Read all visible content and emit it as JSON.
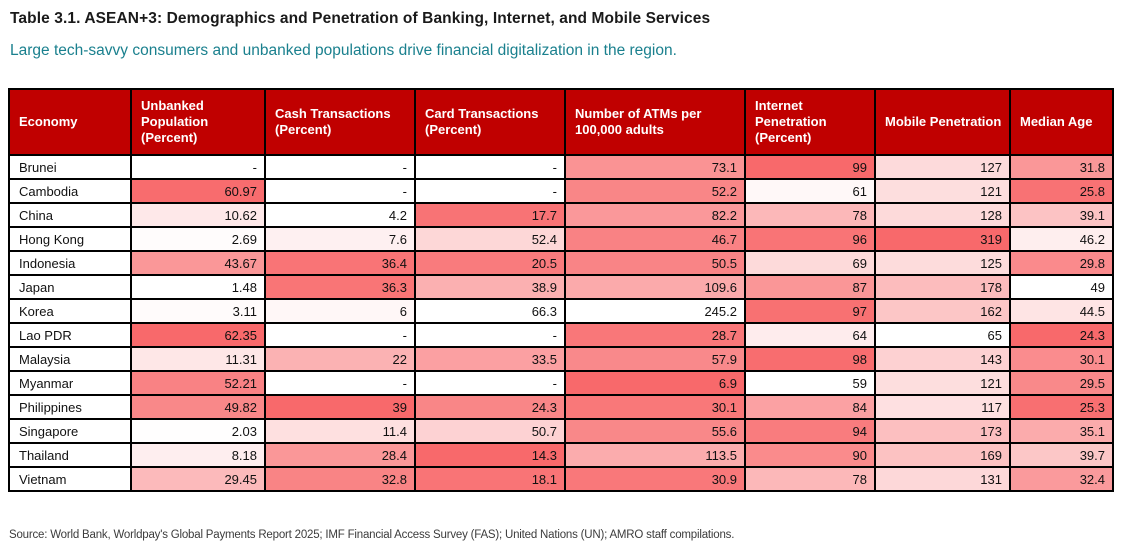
{
  "colors": {
    "header_bg": "#C00000",
    "header_text": "#FFFFFF",
    "heat_high": "#F8696B",
    "heat_low": "#FFFFFF",
    "subtitle_text": "#1A808E",
    "border": "#000000"
  },
  "chart_data": {
    "type": "table",
    "title": "Table 3.1. ASEAN+3: Demographics and Penetration of Banking, Internet, and Mobile Services",
    "subtitle": "Large tech-savvy consumers and unbanked populations drive financial digitalization in the region.",
    "source": "Source: World Bank, Worldpay's Global Payments Report 2025; IMF Financial Access Survey (FAS); United Nations (UN); AMRO staff compilations.",
    "heat_legend": "Per-column 2-color scale from white to #F8696B; high-red means larger values are darker red, low-red means smaller values are darker red",
    "columns": [
      {
        "key": "economy",
        "label": "Economy",
        "type": "text"
      },
      {
        "key": "unbanked-population",
        "label": "Unbanked Population (Percent)",
        "heat": "high-red"
      },
      {
        "key": "cash-transactions",
        "label": "Cash Transactions (Percent)",
        "heat": "high-red"
      },
      {
        "key": "card-transactions",
        "label": "Card Transactions (Percent)",
        "heat": "low-red"
      },
      {
        "key": "atms-per-100000-adults",
        "label": "Number of ATMs per 100,000 adults",
        "heat": "low-red"
      },
      {
        "key": "internet-penetration",
        "label": "Internet Penetration (Percent)",
        "heat": "high-red"
      },
      {
        "key": "mobile-penetration",
        "label": "Mobile Penetration",
        "heat": "high-red"
      },
      {
        "key": "median-age",
        "label": "Median Age",
        "heat": "low-red"
      }
    ],
    "rows": [
      {
        "economy": "Brunei",
        "values": [
          "-",
          "-",
          "-",
          "73.1",
          "99",
          "127",
          "31.8"
        ]
      },
      {
        "economy": "Cambodia",
        "values": [
          "60.97",
          "-",
          "-",
          "52.2",
          "61",
          "121",
          "25.8"
        ]
      },
      {
        "economy": "China",
        "values": [
          "10.62",
          "4.2",
          "17.7",
          "82.2",
          "78",
          "128",
          "39.1"
        ]
      },
      {
        "economy": "Hong Kong",
        "values": [
          "2.69",
          "7.6",
          "52.4",
          "46.7",
          "96",
          "319",
          "46.2"
        ]
      },
      {
        "economy": "Indonesia",
        "values": [
          "43.67",
          "36.4",
          "20.5",
          "50.5",
          "69",
          "125",
          "29.8"
        ]
      },
      {
        "economy": "Japan",
        "values": [
          "1.48",
          "36.3",
          "38.9",
          "109.6",
          "87",
          "178",
          "49"
        ]
      },
      {
        "economy": "Korea",
        "values": [
          "3.11",
          "6",
          "66.3",
          "245.2",
          "97",
          "162",
          "44.5"
        ]
      },
      {
        "economy": "Lao PDR",
        "values": [
          "62.35",
          "-",
          "-",
          "28.7",
          "64",
          "65",
          "24.3"
        ]
      },
      {
        "economy": "Malaysia",
        "values": [
          "11.31",
          "22",
          "33.5",
          "57.9",
          "98",
          "143",
          "30.1"
        ]
      },
      {
        "economy": "Myanmar",
        "values": [
          "52.21",
          "-",
          "-",
          "6.9",
          "59",
          "121",
          "29.5"
        ]
      },
      {
        "economy": "Philippines",
        "values": [
          "49.82",
          "39",
          "24.3",
          "30.1",
          "84",
          "117",
          "25.3"
        ]
      },
      {
        "economy": "Singapore",
        "values": [
          "2.03",
          "11.4",
          "50.7",
          "55.6",
          "94",
          "173",
          "35.1"
        ]
      },
      {
        "economy": "Thailand",
        "values": [
          "8.18",
          "28.4",
          "14.3",
          "113.5",
          "90",
          "169",
          "39.7"
        ]
      },
      {
        "economy": "Vietnam",
        "values": [
          "29.45",
          "32.8",
          "18.1",
          "30.9",
          "78",
          "131",
          "32.4"
        ]
      }
    ]
  }
}
